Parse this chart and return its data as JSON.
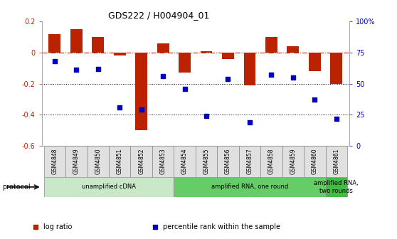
{
  "title": "GDS222 / H004904_01",
  "samples": [
    "GSM4848",
    "GSM4849",
    "GSM4850",
    "GSM4851",
    "GSM4852",
    "GSM4853",
    "GSM4854",
    "GSM4855",
    "GSM4856",
    "GSM4857",
    "GSM4858",
    "GSM4859",
    "GSM4860",
    "GSM4861"
  ],
  "log_ratio": [
    0.12,
    0.15,
    0.1,
    -0.02,
    -0.5,
    0.06,
    -0.13,
    0.01,
    -0.04,
    -0.21,
    0.1,
    0.04,
    -0.12,
    -0.2
  ],
  "percentile": [
    68,
    61,
    62,
    31,
    29,
    56,
    46,
    24,
    54,
    19,
    57,
    55,
    37,
    22
  ],
  "ylim_left": [
    -0.6,
    0.2
  ],
  "ylim_right": [
    0,
    100
  ],
  "yticks_left": [
    -0.6,
    -0.4,
    -0.2,
    0.0,
    0.2
  ],
  "yticks_right": [
    0,
    25,
    50,
    75,
    100
  ],
  "ytick_labels_right": [
    "0",
    "25",
    "50",
    "75",
    "100%"
  ],
  "hline_y": 0.0,
  "dotted_lines": [
    -0.2,
    -0.4
  ],
  "bar_color": "#bb2200",
  "dot_color": "#0000bb",
  "protocol_groups": [
    {
      "label": "unamplified cDNA",
      "start": 0,
      "end": 5,
      "color": "#c8e8c8"
    },
    {
      "label": "amplified RNA, one round",
      "start": 6,
      "end": 12,
      "color": "#66cc66"
    },
    {
      "label": "amplified RNA,\ntwo rounds",
      "start": 13,
      "end": 13,
      "color": "#44bb44"
    }
  ],
  "protocol_label": "protocol",
  "legend_items": [
    {
      "color": "#bb2200",
      "label": "log ratio"
    },
    {
      "color": "#0000bb",
      "label": "percentile rank within the sample"
    }
  ],
  "background": "#ffffff"
}
